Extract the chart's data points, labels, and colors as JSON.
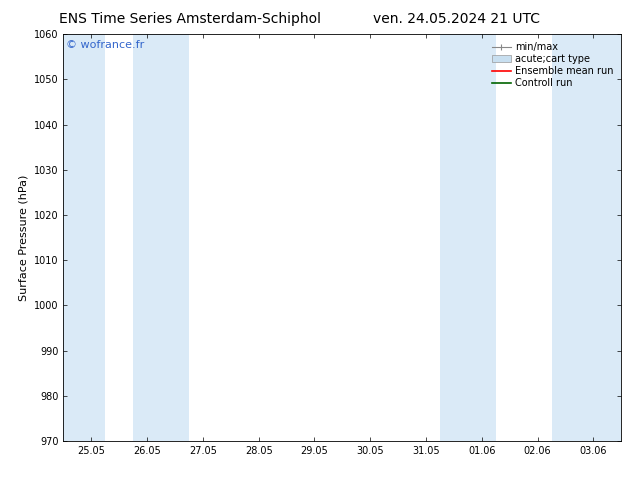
{
  "title_left": "ENS Time Series Amsterdam-Schiphol",
  "title_right": "ven. 24.05.2024 21 UTC",
  "ylabel": "Surface Pressure (hPa)",
  "ylim": [
    970,
    1060
  ],
  "yticks": [
    970,
    980,
    990,
    1000,
    1010,
    1020,
    1030,
    1040,
    1050,
    1060
  ],
  "xtick_labels": [
    "25.05",
    "26.05",
    "27.05",
    "28.05",
    "29.05",
    "30.05",
    "31.05",
    "01.06",
    "02.06",
    "03.06"
  ],
  "xtick_positions": [
    0,
    1,
    2,
    3,
    4,
    5,
    6,
    7,
    8,
    9
  ],
  "xlim": [
    -0.5,
    9.5
  ],
  "shaded_bands": [
    {
      "x_start": -0.5,
      "x_end": 0.25
    },
    {
      "x_start": 0.75,
      "x_end": 1.75
    },
    {
      "x_start": 6.25,
      "x_end": 7.25
    },
    {
      "x_start": 8.25,
      "x_end": 9.5
    }
  ],
  "band_color": "#daeaf7",
  "watermark_text": "© wofrance.fr",
  "watermark_color": "#3366cc",
  "legend_entries": [
    {
      "label": "min/max",
      "color": "#aaaaaa",
      "type": "errorbar"
    },
    {
      "label": "acute;cart type",
      "color": "#c0d8f0",
      "type": "bar"
    },
    {
      "label": "Ensemble mean run",
      "color": "red",
      "type": "line"
    },
    {
      "label": "Controll run",
      "color": "green",
      "type": "line"
    }
  ],
  "bg_color": "#ffffff",
  "plot_bg_color": "#ffffff",
  "title_fontsize": 10,
  "tick_fontsize": 7,
  "label_fontsize": 8,
  "legend_fontsize": 7
}
